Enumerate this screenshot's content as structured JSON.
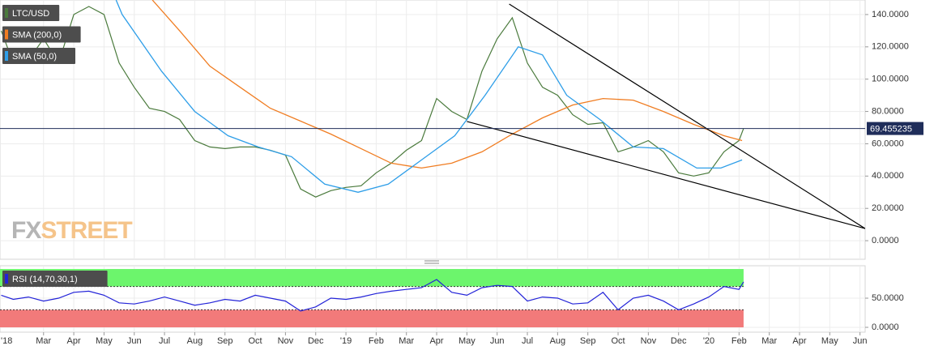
{
  "chart_data": [
    {
      "type": "line",
      "series": [
        {
          "name": "LTC/USD",
          "color": "#4a7a3c",
          "x": [
            0.6,
            1.0,
            1.5,
            2.0,
            2.5,
            3.0,
            3.5,
            4.0,
            4.5,
            5.0,
            5.5,
            6.0,
            6.5,
            7.0,
            7.5,
            8.0,
            8.5,
            9.0,
            9.5,
            10.0,
            10.5,
            11.0,
            11.5,
            12.0,
            12.5,
            13.0,
            13.5,
            14.0,
            14.5,
            15.0,
            15.5,
            16.0,
            16.5,
            17.0,
            17.5,
            18.0,
            18.5,
            19.0,
            19.5,
            20.0,
            20.5,
            21.0,
            21.5,
            22.0,
            22.5,
            23.0,
            23.5,
            24.0,
            24.5,
            25.0,
            25.15
          ],
          "values": [
            130,
            110,
            112,
            125,
            110,
            140,
            145,
            140,
            110,
            95,
            82,
            80,
            75,
            62,
            58,
            57,
            58,
            58,
            56,
            53,
            32,
            27,
            31,
            33,
            34,
            42,
            48,
            56,
            62,
            88,
            80,
            75,
            105,
            125,
            138,
            110,
            95,
            90,
            78,
            72,
            73,
            55,
            58,
            62,
            55,
            42,
            40,
            42,
            55,
            62,
            69.455235
          ]
        },
        {
          "name": "SMA (200,0)",
          "color": "#f07d22",
          "x": [
            5.6,
            6.5,
            7.5,
            8.5,
            9.5,
            10.5,
            11.5,
            12.5,
            13.5,
            14.5,
            15.5,
            16.5,
            17.5,
            18.5,
            19.5,
            20.5,
            21.5,
            22.5,
            23.5,
            24.5,
            25.1
          ],
          "values": [
            149,
            130,
            108,
            95,
            82,
            74,
            66,
            57,
            48,
            45,
            48,
            55,
            66,
            76,
            84,
            88,
            87,
            80,
            72,
            65,
            62
          ]
        },
        {
          "name": "SMA (50,0)",
          "color": "#2e9ee8",
          "x": [
            4.4,
            4.6,
            5.9,
            7.0,
            8.1,
            9.1,
            10.2,
            11.3,
            12.4,
            13.4,
            14.5,
            15.6,
            16.6,
            17.7,
            18.5,
            19.3,
            20.4,
            21.5,
            22.5,
            23.6,
            24.4,
            25.1
          ],
          "values": [
            149,
            140,
            105,
            80,
            65,
            58,
            52,
            35,
            30,
            35,
            50,
            65,
            90,
            120,
            115,
            90,
            75,
            58,
            57,
            45,
            45,
            50
          ]
        }
      ],
      "trendlines": [
        {
          "color": "#000000",
          "x": [
            17.4,
            29.17
          ],
          "values": [
            146.5,
            7.5
          ]
        },
        {
          "color": "#000000",
          "x": [
            16.0,
            29.17
          ],
          "values": [
            73.8,
            7.5
          ]
        }
      ],
      "last_price": 69.455235,
      "last_price_color": "#1f2d5a",
      "watermark": [
        "FX",
        "STREET"
      ],
      "xlim": [
        0.56,
        29.17
      ],
      "ylim": [
        -11.5,
        149
      ],
      "yticks": [
        {
          "value": 0,
          "label": "0.0000"
        },
        {
          "value": 20,
          "label": "20.0000"
        },
        {
          "value": 40,
          "label": "40.0000"
        },
        {
          "value": 60,
          "label": "60.0000"
        },
        {
          "value": 80,
          "label": "80.0000"
        },
        {
          "value": 100,
          "label": "100.0000"
        },
        {
          "value": 120,
          "label": "120.0000"
        },
        {
          "value": 140,
          "label": "140.0000"
        }
      ],
      "grid": true
    },
    {
      "type": "line",
      "series": [
        {
          "name": "RSI (14,70,30,1)",
          "color": "#2323d8",
          "x": [
            0.6,
            1.0,
            1.5,
            2.0,
            2.5,
            3.0,
            3.5,
            4.0,
            4.5,
            5.0,
            5.5,
            6.0,
            6.5,
            7.0,
            7.5,
            8.0,
            8.5,
            9.0,
            9.5,
            10.0,
            10.5,
            11.0,
            11.5,
            12.0,
            12.5,
            13.0,
            13.5,
            14.0,
            14.5,
            15.0,
            15.5,
            16.0,
            16.5,
            17.0,
            17.5,
            18.0,
            18.5,
            19.0,
            19.5,
            20.0,
            20.5,
            21.0,
            21.5,
            22.0,
            22.5,
            23.0,
            23.5,
            24.0,
            24.5,
            25.0,
            25.15
          ],
          "values": [
            55,
            48,
            52,
            45,
            50,
            60,
            62,
            55,
            42,
            40,
            45,
            52,
            45,
            38,
            42,
            48,
            45,
            55,
            50,
            45,
            28,
            35,
            50,
            48,
            52,
            58,
            62,
            65,
            68,
            82,
            60,
            55,
            68,
            72,
            70,
            45,
            52,
            50,
            40,
            42,
            60,
            30,
            50,
            55,
            45,
            30,
            40,
            52,
            70,
            65,
            78
          ]
        }
      ],
      "zones": [
        {
          "from": 70,
          "to": 100,
          "color": "#6cf56c"
        },
        {
          "from": 0,
          "to": 30,
          "color": "#f27a7a"
        }
      ],
      "xlim": [
        0.56,
        29.17
      ],
      "ylim": [
        -8.3,
        105.6
      ],
      "yticks": [
        {
          "value": 0,
          "label": "0.0000"
        },
        {
          "value": 50,
          "label": "50.0000"
        }
      ],
      "xticks": [
        {
          "value": 0,
          "label": "'18"
        },
        {
          "value": 2,
          "label": "Mar"
        },
        {
          "value": 3,
          "label": "Apr"
        },
        {
          "value": 4,
          "label": "May"
        },
        {
          "value": 5,
          "label": "Jun"
        },
        {
          "value": 6,
          "label": "Jul"
        },
        {
          "value": 7,
          "label": "Aug"
        },
        {
          "value": 8,
          "label": "Sep"
        },
        {
          "value": 9,
          "label": "Oct"
        },
        {
          "value": 10,
          "label": "Nov"
        },
        {
          "value": 11,
          "label": "Dec"
        },
        {
          "value": 12,
          "label": "'19"
        },
        {
          "value": 13,
          "label": "Feb"
        },
        {
          "value": 14,
          "label": "Mar"
        },
        {
          "value": 15,
          "label": "Apr"
        },
        {
          "value": 16,
          "label": "May"
        },
        {
          "value": 17,
          "label": "Jun"
        },
        {
          "value": 18,
          "label": "Jul"
        },
        {
          "value": 19,
          "label": "Aug"
        },
        {
          "value": 20,
          "label": "Sep"
        },
        {
          "value": 21,
          "label": "Oct"
        },
        {
          "value": 22,
          "label": "Nov"
        },
        {
          "value": 23,
          "label": "Dec"
        },
        {
          "value": 24,
          "label": "'20"
        },
        {
          "value": 25,
          "label": "Feb"
        },
        {
          "value": 26,
          "label": "Mar"
        },
        {
          "value": 27,
          "label": "Apr"
        },
        {
          "value": 28,
          "label": "May"
        },
        {
          "value": 29,
          "label": "Jun"
        }
      ],
      "grid": true
    }
  ]
}
